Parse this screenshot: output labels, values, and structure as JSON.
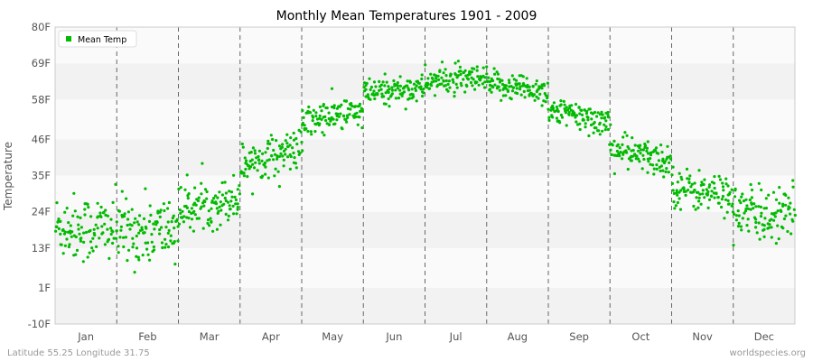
{
  "chart_data": {
    "type": "scatter",
    "title": "Monthly Mean Temperatures 1901 - 2009",
    "xlabel": "",
    "ylabel": "Temperature",
    "ylim": [
      -10,
      80
    ],
    "y_ticks": [
      "-10F",
      "1F",
      "13F",
      "24F",
      "35F",
      "46F",
      "58F",
      "69F",
      "80F"
    ],
    "y_tick_values": [
      -10,
      1,
      13,
      24,
      35,
      46,
      58,
      69,
      80
    ],
    "categories": [
      "Jan",
      "Feb",
      "Mar",
      "Apr",
      "May",
      "Jun",
      "Jul",
      "Aug",
      "Sep",
      "Oct",
      "Nov",
      "Dec"
    ],
    "legend_position": "top-left",
    "grid": "horizontal alternating bands, dashed vertical month separators",
    "series": [
      {
        "name": "Mean Temp",
        "color": "#00bb00",
        "points_per_month": 109,
        "approx_monthly_mean": [
          19,
          18,
          26,
          41,
          53,
          61,
          64,
          62,
          53,
          41,
          30,
          23
        ],
        "approx_monthly_spread": [
          6,
          6,
          4,
          3.5,
          3,
          2.5,
          2.5,
          2.5,
          2.5,
          3,
          3.5,
          5
        ]
      }
    ]
  },
  "footer": {
    "left": "Latitude 55.25 Longitude 31.75",
    "right": "worldspecies.org"
  }
}
